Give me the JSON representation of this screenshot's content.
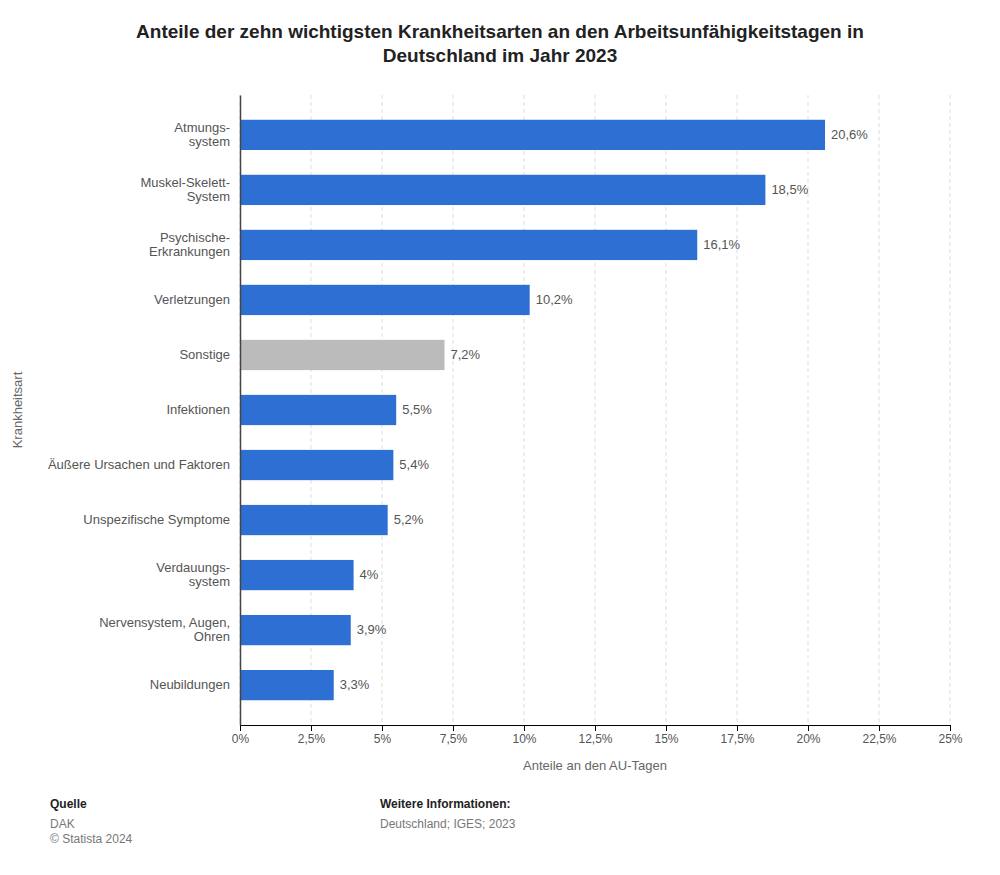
{
  "chart_data": {
    "type": "bar",
    "orientation": "horizontal",
    "title": "Anteile der zehn wichtigsten Krankheitsarten an den Arbeitsunfähigkeitstagen in\nDeutschland im Jahr 2023",
    "x_label": "Anteile an den AU-Tagen",
    "y_label": "Krankheitsart",
    "categories": [
      "Neubildungen",
      "Nervensystem, Augen,\nOhren",
      "Verdauungs-\nsystem",
      "Unspezifische Symptome",
      "Äußere Ursachen und Faktoren",
      "Infektionen",
      "Sonstige",
      "Verletzungen",
      "Psychische-\nErkrankungen",
      "Muskel-Skelett-\nSystem",
      "Atmungs-\nsystem"
    ],
    "values": [
      3.3,
      3.9,
      4.0,
      5.2,
      5.4,
      5.5,
      7.2,
      10.2,
      16.1,
      18.5,
      20.6
    ],
    "value_labels": [
      "3,3%",
      "3,9%",
      "4%",
      "5,2%",
      "5,4%",
      "5,5%",
      "7,2%",
      "10,2%",
      "16,1%",
      "18,5%",
      "20,6%"
    ],
    "data_labels": true,
    "colors": [
      "#2E6FD4",
      "#2E6FD4",
      "#2E6FD4",
      "#2E6FD4",
      "#2E6FD4",
      "#2E6FD4",
      "#BBBBBB",
      "#2E6FD4",
      "#2E6FD4",
      "#2E6FD4",
      "#2E6FD4"
    ],
    "xlim": [
      0,
      25
    ],
    "xticks": [
      {
        "value": 0,
        "label": "0%"
      },
      {
        "value": 2.5,
        "label": "2,5%"
      },
      {
        "value": 5,
        "label": "5%"
      },
      {
        "value": 7.5,
        "label": "7,5%"
      },
      {
        "value": 10,
        "label": "10%"
      },
      {
        "value": 12.5,
        "label": "12,5%"
      },
      {
        "value": 15,
        "label": "15%"
      },
      {
        "value": 17.5,
        "label": "17,5%"
      },
      {
        "value": 20,
        "label": "20%"
      },
      {
        "value": 22.5,
        "label": "22,5%"
      },
      {
        "value": 25,
        "label": "25%"
      }
    ],
    "grid": true,
    "annotations": [
      "Quelle",
      "DAK\n© Statista 2024",
      "Weitere Informationen:",
      "Deutschland; IGES; 2023"
    ]
  }
}
